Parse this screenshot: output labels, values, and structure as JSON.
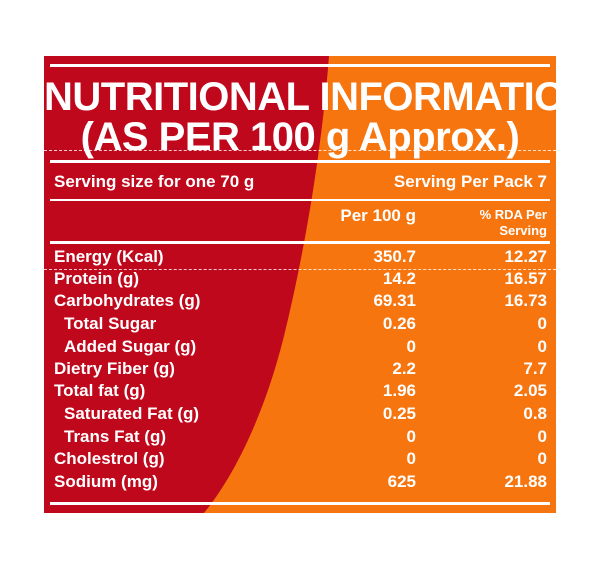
{
  "colors": {
    "left_panel": "#c0081d",
    "right_panel": "#f6750f",
    "text": "#ffffff"
  },
  "title": {
    "line1": "NUTRITIONAL INFORMATION",
    "line2": "(AS PER 100 g Approx.)"
  },
  "serving": {
    "size": "Serving size for one 70 g",
    "per_pack": "Serving Per Pack 7"
  },
  "columns": {
    "per100": "Per 100 g",
    "rda_line1": "% RDA Per",
    "rda_line2": "Serving"
  },
  "rows": [
    {
      "name": "Energy (Kcal)",
      "per100": "350.7",
      "rda": "12.27"
    },
    {
      "name": "Protein (g)",
      "per100": "14.2",
      "rda": "16.57"
    },
    {
      "name": "Carbohydrates (g)",
      "per100": "69.31",
      "rda": "16.73"
    },
    {
      "name": "Total Sugar",
      "per100": "0.26",
      "rda": "0"
    },
    {
      "name": "Added Sugar (g)",
      "per100": "0",
      "rda": "0"
    },
    {
      "name": "Dietry Fiber (g)",
      "per100": "2.2",
      "rda": "7.7"
    },
    {
      "name": "Total fat (g)",
      "per100": "1.96",
      "rda": "2.05"
    },
    {
      "name": "Saturated Fat (g)",
      "per100": "0.25",
      "rda": "0.8"
    },
    {
      "name": "Trans Fat (g)",
      "per100": "0",
      "rda": "0"
    },
    {
      "name": "Cholestrol (g)",
      "per100": "0",
      "rda": "0"
    },
    {
      "name": "Sodium (mg)",
      "per100": "625",
      "rda": "21.88"
    }
  ]
}
